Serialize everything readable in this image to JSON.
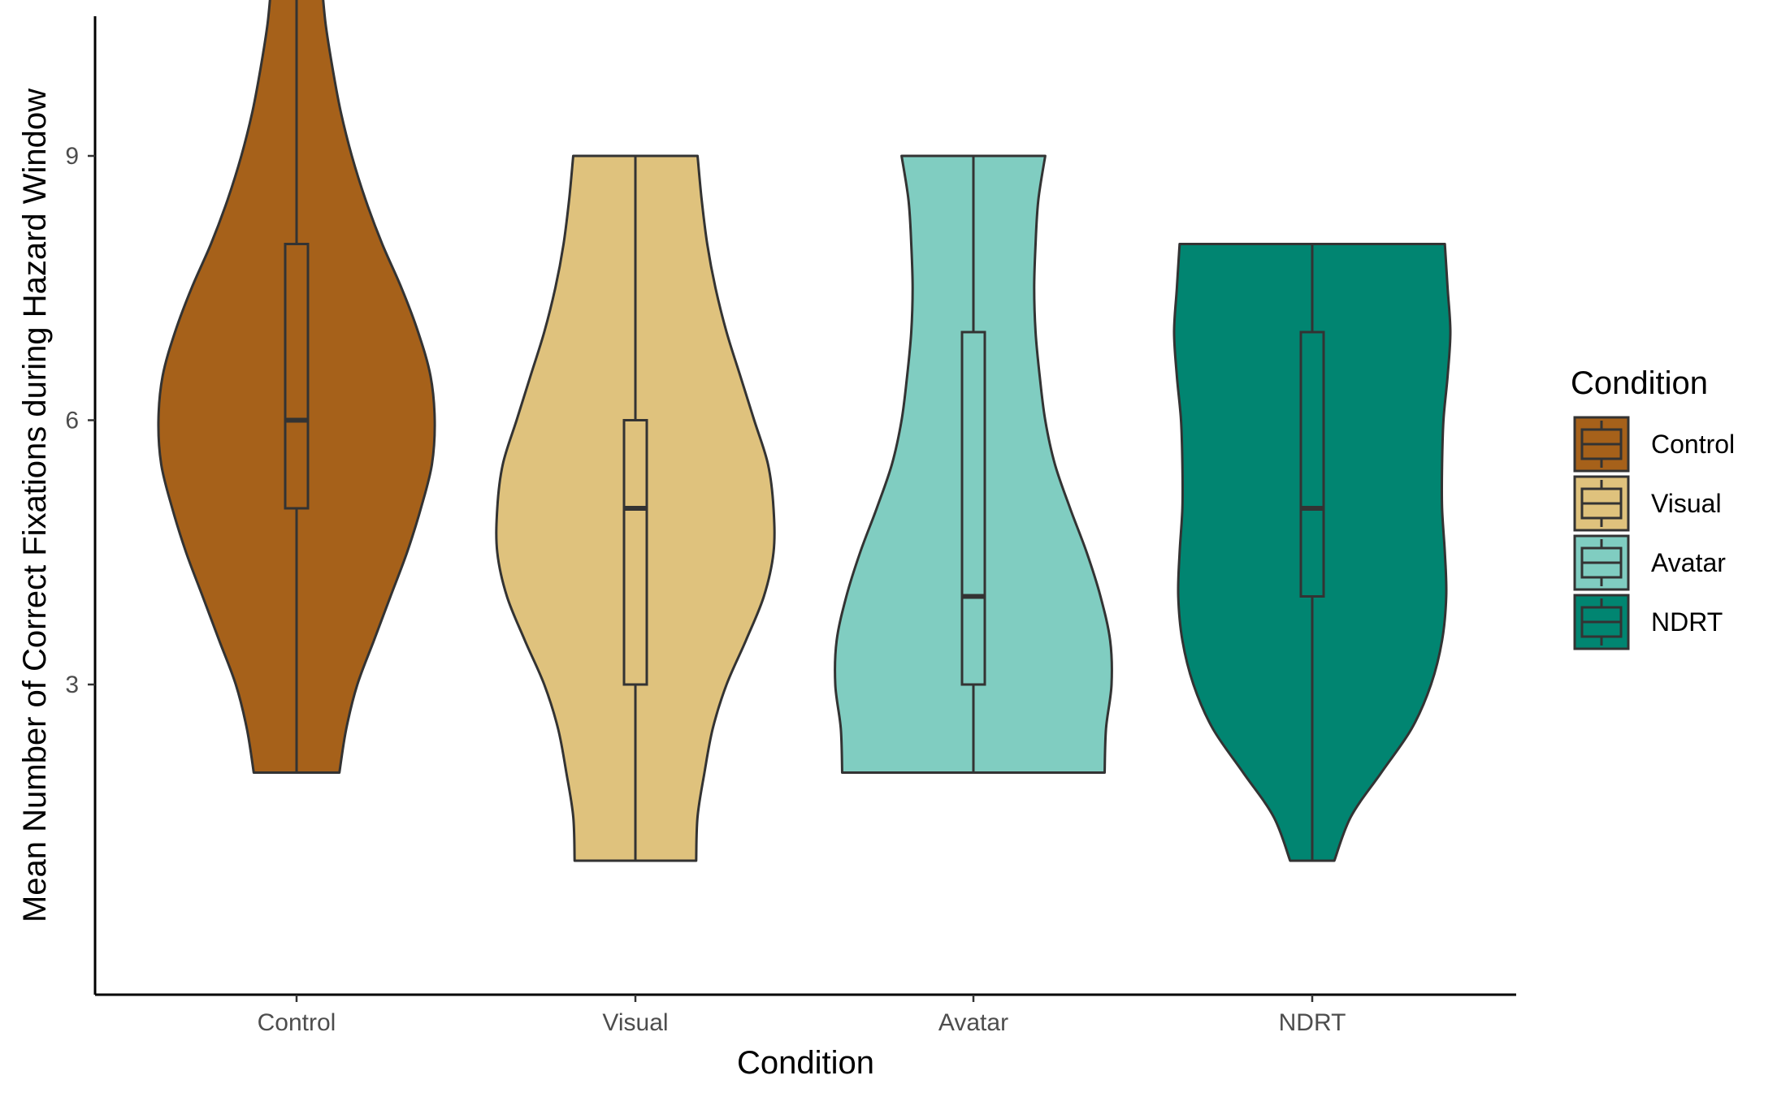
{
  "chart_data": {
    "type": "violin",
    "xlabel": "Condition",
    "ylabel": "Mean Number of Correct Fixations during Hazard Window",
    "y_ticks": [
      3,
      6,
      9
    ],
    "ylim": [
      0.5,
      11.5
    ],
    "grid": false,
    "legend": {
      "title": "Condition",
      "placement": "right",
      "entries": [
        "Control",
        "Visual",
        "Avatar",
        "NDRT"
      ]
    },
    "categories": [
      "Control",
      "Visual",
      "Avatar",
      "NDRT"
    ],
    "series": [
      {
        "name": "Control",
        "color": "#A6611A",
        "boxplot": {
          "whisker_low": 2,
          "q1": 5,
          "median": 6,
          "q3": 8,
          "whisker_high": 11
        },
        "violin": {
          "y": [
            2,
            2.5,
            3,
            3.5,
            4,
            4.5,
            5,
            5.5,
            6,
            6.5,
            7,
            7.5,
            8,
            8.5,
            9,
            9.5,
            10,
            10.5,
            11
          ],
          "width": [
            0.31,
            0.36,
            0.44,
            0.56,
            0.68,
            0.8,
            0.9,
            0.98,
            1.0,
            0.97,
            0.88,
            0.76,
            0.62,
            0.5,
            0.4,
            0.32,
            0.26,
            0.21,
            0.18
          ]
        }
      },
      {
        "name": "Visual",
        "color": "#DFC27D",
        "boxplot": {
          "whisker_low": 1,
          "q1": 3,
          "median": 5,
          "q3": 6,
          "whisker_high": 9
        },
        "violin": {
          "y": [
            1,
            1.5,
            2,
            2.5,
            3,
            3.5,
            4,
            4.5,
            5,
            5.5,
            6,
            6.5,
            7,
            7.5,
            8,
            8.5,
            9
          ],
          "width": [
            0.44,
            0.45,
            0.5,
            0.56,
            0.66,
            0.8,
            0.93,
            1.0,
            1.0,
            0.96,
            0.86,
            0.76,
            0.66,
            0.58,
            0.52,
            0.48,
            0.45
          ]
        }
      },
      {
        "name": "Avatar",
        "color": "#80CDC1",
        "boxplot": {
          "whisker_low": 2,
          "q1": 3,
          "median": 4,
          "q3": 7,
          "whisker_high": 9
        },
        "violin": {
          "y": [
            2,
            2.5,
            3,
            3.5,
            4,
            4.5,
            5,
            5.5,
            6,
            6.5,
            7,
            7.5,
            8,
            8.5,
            9
          ],
          "width": [
            0.95,
            0.96,
            1.0,
            0.99,
            0.92,
            0.82,
            0.7,
            0.59,
            0.52,
            0.48,
            0.45,
            0.44,
            0.45,
            0.47,
            0.52
          ]
        }
      },
      {
        "name": "NDRT",
        "color": "#018571",
        "boxplot": {
          "whisker_low": 1,
          "q1": 4,
          "median": 5,
          "q3": 7,
          "whisker_high": 8
        },
        "violin": {
          "y": [
            1,
            1.5,
            2,
            2.5,
            3,
            3.5,
            4,
            4.5,
            5,
            5.5,
            6,
            6.5,
            7,
            7.5,
            8
          ],
          "width": [
            0.16,
            0.28,
            0.5,
            0.72,
            0.86,
            0.94,
            0.97,
            0.96,
            0.94,
            0.94,
            0.95,
            0.98,
            1.0,
            0.98,
            0.96
          ]
        }
      }
    ]
  }
}
